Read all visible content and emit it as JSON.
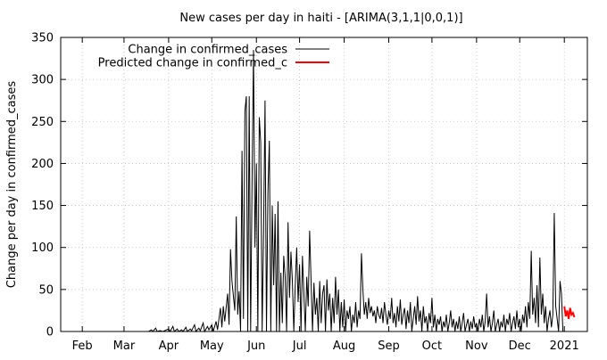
{
  "chart_data": {
    "type": "line",
    "title": "New cases per day in haiti -  [ARIMA(3,1,1|0,0,1)]",
    "xlabel": "",
    "ylabel": "Change per day in confirmed_cases",
    "ylim": [
      0,
      350
    ],
    "yticks": [
      0,
      50,
      100,
      150,
      200,
      250,
      300,
      350
    ],
    "xlim": [
      "2020-01-17",
      "2021-01-17"
    ],
    "xticks": [
      {
        "date": "2020-02-01",
        "label": "Feb"
      },
      {
        "date": "2020-03-01",
        "label": "Mar"
      },
      {
        "date": "2020-04-01",
        "label": "Apr"
      },
      {
        "date": "2020-05-01",
        "label": "May"
      },
      {
        "date": "2020-06-01",
        "label": "Jun"
      },
      {
        "date": "2020-07-01",
        "label": "Jul"
      },
      {
        "date": "2020-08-01",
        "label": "Aug"
      },
      {
        "date": "2020-09-01",
        "label": "Sep"
      },
      {
        "date": "2020-10-01",
        "label": "Oct"
      },
      {
        "date": "2020-11-01",
        "label": "Nov"
      },
      {
        "date": "2020-12-01",
        "label": "Dec"
      },
      {
        "date": "2021-01-01",
        "label": "2021"
      }
    ],
    "grid": true,
    "legend_position": "top-left",
    "series": [
      {
        "name": "Change in confirmed_cases",
        "color": "#000000",
        "points": [
          [
            "2020-03-18",
            0
          ],
          [
            "2020-03-20",
            2
          ],
          [
            "2020-03-21",
            0
          ],
          [
            "2020-03-23",
            4
          ],
          [
            "2020-03-24",
            0
          ],
          [
            "2020-03-26",
            1
          ],
          [
            "2020-03-28",
            0
          ],
          [
            "2020-04-01",
            3
          ],
          [
            "2020-04-02",
            0
          ],
          [
            "2020-04-04",
            6
          ],
          [
            "2020-04-05",
            0
          ],
          [
            "2020-04-07",
            3
          ],
          [
            "2020-04-08",
            0
          ],
          [
            "2020-04-10",
            2
          ],
          [
            "2020-04-11",
            0
          ],
          [
            "2020-04-13",
            5
          ],
          [
            "2020-04-14",
            0
          ],
          [
            "2020-04-16",
            3
          ],
          [
            "2020-04-17",
            1
          ],
          [
            "2020-04-19",
            8
          ],
          [
            "2020-04-20",
            0
          ],
          [
            "2020-04-22",
            4
          ],
          [
            "2020-04-23",
            1
          ],
          [
            "2020-04-25",
            10
          ],
          [
            "2020-04-26",
            0
          ],
          [
            "2020-04-28",
            6
          ],
          [
            "2020-04-29",
            2
          ],
          [
            "2020-05-01",
            8
          ],
          [
            "2020-05-02",
            0
          ],
          [
            "2020-05-04",
            12
          ],
          [
            "2020-05-05",
            2
          ],
          [
            "2020-05-07",
            28
          ],
          [
            "2020-05-08",
            5
          ],
          [
            "2020-05-09",
            30
          ],
          [
            "2020-05-10",
            12
          ],
          [
            "2020-05-12",
            45
          ],
          [
            "2020-05-13",
            8
          ],
          [
            "2020-05-14",
            98
          ],
          [
            "2020-05-15",
            60
          ],
          [
            "2020-05-17",
            25
          ],
          [
            "2020-05-18",
            137
          ],
          [
            "2020-05-19",
            20
          ],
          [
            "2020-05-20",
            48
          ],
          [
            "2020-05-21",
            0
          ],
          [
            "2020-05-22",
            215
          ],
          [
            "2020-05-23",
            15
          ],
          [
            "2020-05-24",
            262
          ],
          [
            "2020-05-25",
            280
          ],
          [
            "2020-05-26",
            0
          ],
          [
            "2020-05-27",
            280
          ],
          [
            "2020-05-28",
            0
          ],
          [
            "2020-05-29",
            180
          ],
          [
            "2020-05-30",
            335
          ],
          [
            "2020-05-31",
            100
          ],
          [
            "2020-06-01",
            200
          ],
          [
            "2020-06-02",
            0
          ],
          [
            "2020-06-03",
            255
          ],
          [
            "2020-06-04",
            225
          ],
          [
            "2020-06-05",
            0
          ],
          [
            "2020-06-06",
            120
          ],
          [
            "2020-06-07",
            275
          ],
          [
            "2020-06-08",
            0
          ],
          [
            "2020-06-09",
            165
          ],
          [
            "2020-06-10",
            227
          ],
          [
            "2020-06-11",
            0
          ],
          [
            "2020-06-12",
            150
          ],
          [
            "2020-06-13",
            55
          ],
          [
            "2020-06-14",
            140
          ],
          [
            "2020-06-15",
            0
          ],
          [
            "2020-06-16",
            155
          ],
          [
            "2020-06-17",
            0
          ],
          [
            "2020-06-18",
            70
          ],
          [
            "2020-06-19",
            10
          ],
          [
            "2020-06-20",
            90
          ],
          [
            "2020-06-21",
            65
          ],
          [
            "2020-06-22",
            0
          ],
          [
            "2020-06-23",
            130
          ],
          [
            "2020-06-24",
            40
          ],
          [
            "2020-06-25",
            95
          ],
          [
            "2020-06-26",
            60
          ],
          [
            "2020-06-27",
            0
          ],
          [
            "2020-06-28",
            55
          ],
          [
            "2020-06-29",
            100
          ],
          [
            "2020-06-30",
            35
          ],
          [
            "2020-07-01",
            80
          ],
          [
            "2020-07-02",
            0
          ],
          [
            "2020-07-03",
            90
          ],
          [
            "2020-07-04",
            45
          ],
          [
            "2020-07-05",
            0
          ],
          [
            "2020-07-06",
            65
          ],
          [
            "2020-07-07",
            30
          ],
          [
            "2020-07-08",
            120
          ],
          [
            "2020-07-09",
            60
          ],
          [
            "2020-07-10",
            0
          ],
          [
            "2020-07-11",
            58
          ],
          [
            "2020-07-12",
            20
          ],
          [
            "2020-07-13",
            40
          ],
          [
            "2020-07-14",
            0
          ],
          [
            "2020-07-15",
            60
          ],
          [
            "2020-07-16",
            10
          ],
          [
            "2020-07-17",
            45
          ],
          [
            "2020-07-18",
            55
          ],
          [
            "2020-07-19",
            0
          ],
          [
            "2020-07-20",
            62
          ],
          [
            "2020-07-21",
            25
          ],
          [
            "2020-07-22",
            45
          ],
          [
            "2020-07-23",
            0
          ],
          [
            "2020-07-24",
            40
          ],
          [
            "2020-07-25",
            10
          ],
          [
            "2020-07-26",
            65
          ],
          [
            "2020-07-27",
            20
          ],
          [
            "2020-07-28",
            50
          ],
          [
            "2020-07-29",
            0
          ],
          [
            "2020-07-30",
            35
          ],
          [
            "2020-07-31",
            5
          ],
          [
            "2020-08-01",
            38
          ],
          [
            "2020-08-02",
            0
          ],
          [
            "2020-08-03",
            25
          ],
          [
            "2020-08-04",
            15
          ],
          [
            "2020-08-05",
            30
          ],
          [
            "2020-08-06",
            0
          ],
          [
            "2020-08-07",
            20
          ],
          [
            "2020-08-08",
            10
          ],
          [
            "2020-08-09",
            35
          ],
          [
            "2020-08-10",
            5
          ],
          [
            "2020-08-11",
            25
          ],
          [
            "2020-08-12",
            15
          ],
          [
            "2020-08-13",
            93
          ],
          [
            "2020-08-14",
            50
          ],
          [
            "2020-08-15",
            20
          ],
          [
            "2020-08-16",
            35
          ],
          [
            "2020-08-17",
            15
          ],
          [
            "2020-08-18",
            40
          ],
          [
            "2020-08-19",
            22
          ],
          [
            "2020-08-20",
            30
          ],
          [
            "2020-08-21",
            18
          ],
          [
            "2020-08-22",
            25
          ],
          [
            "2020-08-23",
            10
          ],
          [
            "2020-08-24",
            30
          ],
          [
            "2020-08-25",
            20
          ],
          [
            "2020-08-26",
            15
          ],
          [
            "2020-08-27",
            28
          ],
          [
            "2020-08-28",
            10
          ],
          [
            "2020-08-29",
            35
          ],
          [
            "2020-08-30",
            20
          ],
          [
            "2020-08-31",
            8
          ],
          [
            "2020-09-01",
            25
          ],
          [
            "2020-09-02",
            15
          ],
          [
            "2020-09-03",
            40
          ],
          [
            "2020-09-04",
            10
          ],
          [
            "2020-09-05",
            22
          ],
          [
            "2020-09-06",
            5
          ],
          [
            "2020-09-07",
            30
          ],
          [
            "2020-09-08",
            12
          ],
          [
            "2020-09-09",
            38
          ],
          [
            "2020-09-10",
            8
          ],
          [
            "2020-09-11",
            20
          ],
          [
            "2020-09-12",
            28
          ],
          [
            "2020-09-13",
            3
          ],
          [
            "2020-09-14",
            25
          ],
          [
            "2020-09-15",
            10
          ],
          [
            "2020-09-16",
            35
          ],
          [
            "2020-09-17",
            0
          ],
          [
            "2020-09-18",
            15
          ],
          [
            "2020-09-19",
            30
          ],
          [
            "2020-09-20",
            8
          ],
          [
            "2020-09-21",
            42
          ],
          [
            "2020-09-22",
            12
          ],
          [
            "2020-09-23",
            25
          ],
          [
            "2020-09-24",
            0
          ],
          [
            "2020-09-25",
            30
          ],
          [
            "2020-09-26",
            10
          ],
          [
            "2020-09-27",
            18
          ],
          [
            "2020-09-28",
            0
          ],
          [
            "2020-09-29",
            22
          ],
          [
            "2020-09-30",
            10
          ],
          [
            "2020-10-01",
            40
          ],
          [
            "2020-10-02",
            5
          ],
          [
            "2020-10-03",
            20
          ],
          [
            "2020-10-04",
            0
          ],
          [
            "2020-10-05",
            15
          ],
          [
            "2020-10-06",
            8
          ],
          [
            "2020-10-07",
            18
          ],
          [
            "2020-10-08",
            0
          ],
          [
            "2020-10-09",
            12
          ],
          [
            "2020-10-10",
            5
          ],
          [
            "2020-10-11",
            20
          ],
          [
            "2020-10-12",
            0
          ],
          [
            "2020-10-13",
            10
          ],
          [
            "2020-10-14",
            25
          ],
          [
            "2020-10-15",
            5
          ],
          [
            "2020-10-16",
            15
          ],
          [
            "2020-10-17",
            0
          ],
          [
            "2020-10-18",
            12
          ],
          [
            "2020-10-19",
            3
          ],
          [
            "2020-10-20",
            18
          ],
          [
            "2020-10-21",
            0
          ],
          [
            "2020-10-22",
            10
          ],
          [
            "2020-10-23",
            22
          ],
          [
            "2020-10-24",
            0
          ],
          [
            "2020-10-25",
            8
          ],
          [
            "2020-10-26",
            15
          ],
          [
            "2020-10-27",
            0
          ],
          [
            "2020-10-28",
            12
          ],
          [
            "2020-10-29",
            3
          ],
          [
            "2020-10-30",
            18
          ],
          [
            "2020-10-31",
            5
          ],
          [
            "2020-11-01",
            10
          ],
          [
            "2020-11-02",
            0
          ],
          [
            "2020-11-03",
            15
          ],
          [
            "2020-11-04",
            5
          ],
          [
            "2020-11-05",
            20
          ],
          [
            "2020-11-06",
            0
          ],
          [
            "2020-11-07",
            12
          ],
          [
            "2020-11-08",
            45
          ],
          [
            "2020-11-09",
            5
          ],
          [
            "2020-11-10",
            18
          ],
          [
            "2020-11-11",
            0
          ],
          [
            "2020-11-12",
            10
          ],
          [
            "2020-11-13",
            25
          ],
          [
            "2020-11-14",
            0
          ],
          [
            "2020-11-15",
            8
          ],
          [
            "2020-11-16",
            15
          ],
          [
            "2020-11-17",
            0
          ],
          [
            "2020-11-18",
            12
          ],
          [
            "2020-11-19",
            5
          ],
          [
            "2020-11-20",
            20
          ],
          [
            "2020-11-21",
            0
          ],
          [
            "2020-11-22",
            15
          ],
          [
            "2020-11-23",
            8
          ],
          [
            "2020-11-24",
            22
          ],
          [
            "2020-11-25",
            0
          ],
          [
            "2020-11-26",
            10
          ],
          [
            "2020-11-27",
            18
          ],
          [
            "2020-11-28",
            3
          ],
          [
            "2020-11-29",
            25
          ],
          [
            "2020-11-30",
            5
          ],
          [
            "2020-12-01",
            15
          ],
          [
            "2020-12-02",
            0
          ],
          [
            "2020-12-03",
            20
          ],
          [
            "2020-12-04",
            10
          ],
          [
            "2020-12-05",
            30
          ],
          [
            "2020-12-06",
            5
          ],
          [
            "2020-12-07",
            35
          ],
          [
            "2020-12-08",
            15
          ],
          [
            "2020-12-09",
            96
          ],
          [
            "2020-12-10",
            20
          ],
          [
            "2020-12-11",
            40
          ],
          [
            "2020-12-12",
            10
          ],
          [
            "2020-12-13",
            55
          ],
          [
            "2020-12-14",
            5
          ],
          [
            "2020-12-15",
            88
          ],
          [
            "2020-12-16",
            20
          ],
          [
            "2020-12-17",
            45
          ],
          [
            "2020-12-18",
            10
          ],
          [
            "2020-12-19",
            30
          ],
          [
            "2020-12-20",
            0
          ],
          [
            "2020-12-21",
            15
          ],
          [
            "2020-12-22",
            25
          ],
          [
            "2020-12-23",
            5
          ],
          [
            "2020-12-24",
            20
          ],
          [
            "2020-12-25",
            141
          ],
          [
            "2020-12-26",
            30
          ],
          [
            "2020-12-27",
            15
          ],
          [
            "2020-12-28",
            0
          ],
          [
            "2020-12-29",
            60
          ],
          [
            "2020-12-30",
            45
          ],
          [
            "2020-12-31",
            0
          ]
        ]
      },
      {
        "name": "Predicted change in confirmed_c",
        "color": "#ff0000",
        "points": [
          [
            "2021-01-01",
            30
          ],
          [
            "2021-01-02",
            18
          ],
          [
            "2021-01-03",
            25
          ],
          [
            "2021-01-04",
            15
          ],
          [
            "2021-01-05",
            28
          ],
          [
            "2021-01-06",
            20
          ],
          [
            "2021-01-07",
            22
          ],
          [
            "2021-01-08",
            17
          ]
        ]
      }
    ]
  }
}
